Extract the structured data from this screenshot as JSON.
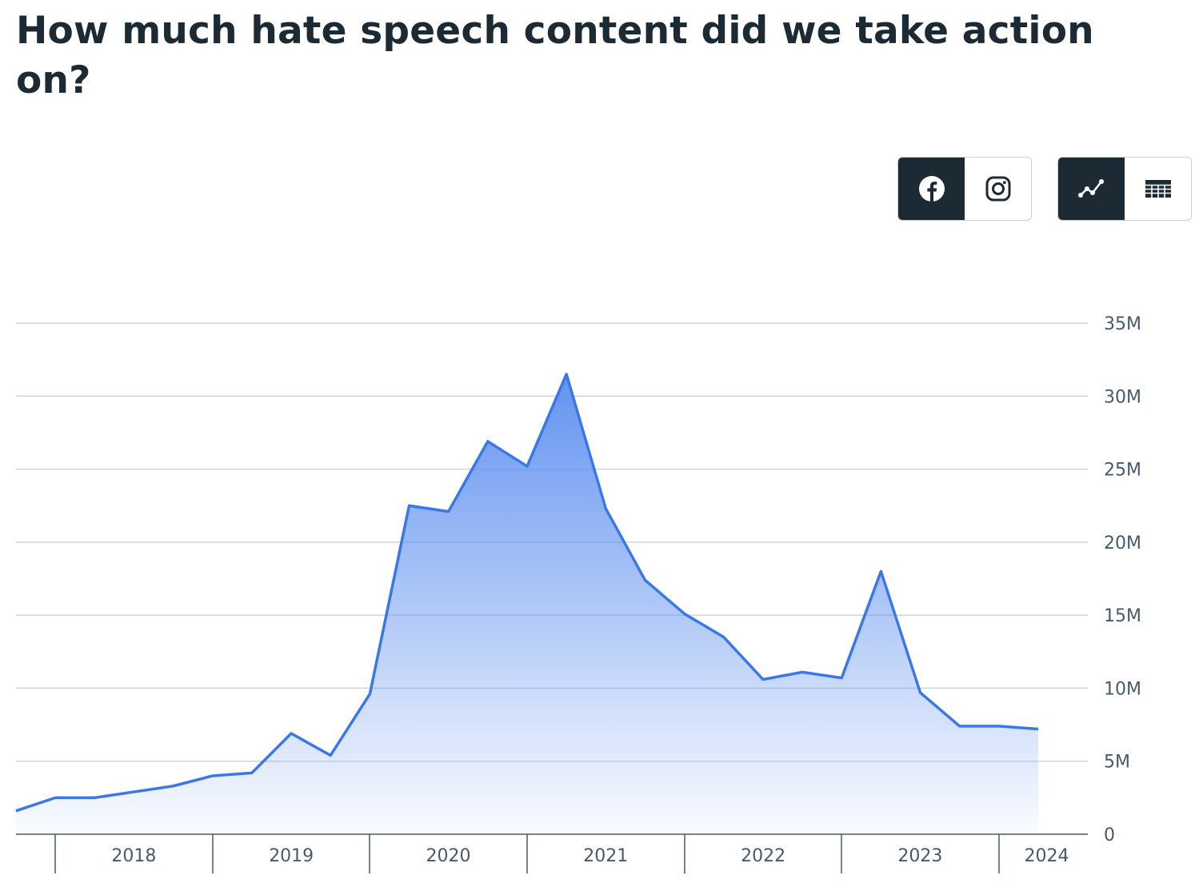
{
  "title": "How much hate speech content did we take action on?",
  "toggles": {
    "platform": [
      {
        "icon": "facebook-icon",
        "active": true
      },
      {
        "icon": "instagram-icon",
        "active": false
      }
    ],
    "view": [
      {
        "icon": "line-chart-icon",
        "active": true
      },
      {
        "icon": "table-icon",
        "active": false
      }
    ]
  },
  "colors": {
    "line": "#3b78e7",
    "fill_top": "#5b8def",
    "grid": "#cfd5db",
    "text": "#1c2b33",
    "active_button": "#1c2b33"
  },
  "chart_data": {
    "type": "area",
    "title": "",
    "xlabel": "",
    "ylabel": "",
    "ylim": [
      0,
      35
    ],
    "y_unit": "M",
    "y_ticks": [
      "0",
      "5M",
      "10M",
      "15M",
      "20M",
      "25M",
      "30M",
      "35M"
    ],
    "x_tick_labels": [
      "2018",
      "2019",
      "2020",
      "2021",
      "2022",
      "2023",
      "2024"
    ],
    "grid": true,
    "x": [
      "Q4 2017",
      "Q1 2018",
      "Q2 2018",
      "Q3 2018",
      "Q4 2018",
      "Q1 2019",
      "Q2 2019",
      "Q3 2019",
      "Q4 2019",
      "Q1 2020",
      "Q2 2020",
      "Q3 2020",
      "Q4 2020",
      "Q1 2021",
      "Q2 2021",
      "Q3 2021",
      "Q4 2021",
      "Q1 2022",
      "Q2 2022",
      "Q3 2022",
      "Q4 2022",
      "Q1 2023",
      "Q2 2023",
      "Q3 2023",
      "Q4 2023",
      "Q1 2024",
      "Q2 2024"
    ],
    "values": [
      1.6,
      2.5,
      2.5,
      2.9,
      3.3,
      4.0,
      4.2,
      6.9,
      5.4,
      9.6,
      22.5,
      22.1,
      26.9,
      25.2,
      31.5,
      22.3,
      17.4,
      15.1,
      13.5,
      10.6,
      11.1,
      10.7,
      18.0,
      9.7,
      7.4,
      7.4,
      7.2
    ]
  }
}
